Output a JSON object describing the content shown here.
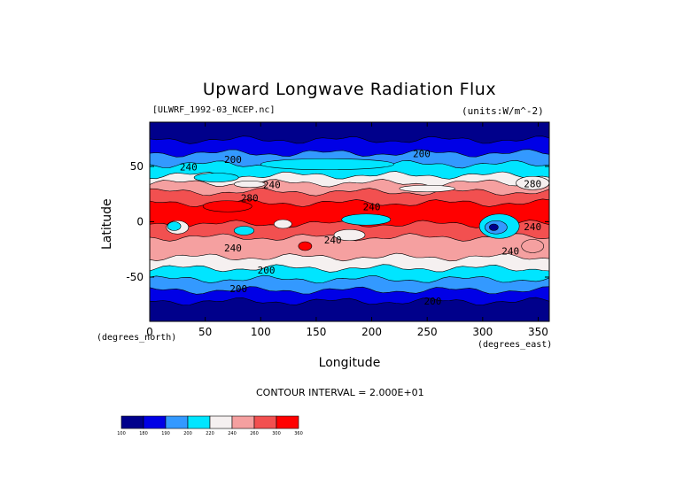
{
  "chart_data": {
    "type": "heatmap",
    "title": "Upward Longwave Radiation Flux",
    "subtitle_left": "[ULWRF_1992-03_NCEP.nc]",
    "subtitle_right": "(units:W/m^-2)",
    "xlabel": "Longitude",
    "ylabel": "Latitude",
    "x_unit_note": "(degrees_north)",
    "y_unit_note": "(degrees_east)",
    "xlim": [
      0,
      360
    ],
    "ylim": [
      -90,
      90
    ],
    "x_ticks": [
      "0",
      "50",
      "100",
      "150",
      "200",
      "250",
      "300",
      "350"
    ],
    "y_ticks": [
      "50",
      "0",
      "-50"
    ],
    "contour_interval": "CONTOUR INTERVAL = 2.000E+01",
    "contour_labels": [
      "200",
      "200",
      "240",
      "240",
      "280",
      "280",
      "240",
      "240",
      "240",
      "200",
      "200",
      "200",
      "240",
      "240"
    ],
    "colorbar": {
      "levels": [
        "100",
        "180",
        "190",
        "200",
        "220",
        "240",
        "260",
        "300",
        "360"
      ],
      "colors": [
        "#00008b",
        "#0000e6",
        "#3399ff",
        "#00e5ff",
        "#f5f0f0",
        "#f5a0a0",
        "#f25050",
        "#ff0000"
      ]
    }
  }
}
